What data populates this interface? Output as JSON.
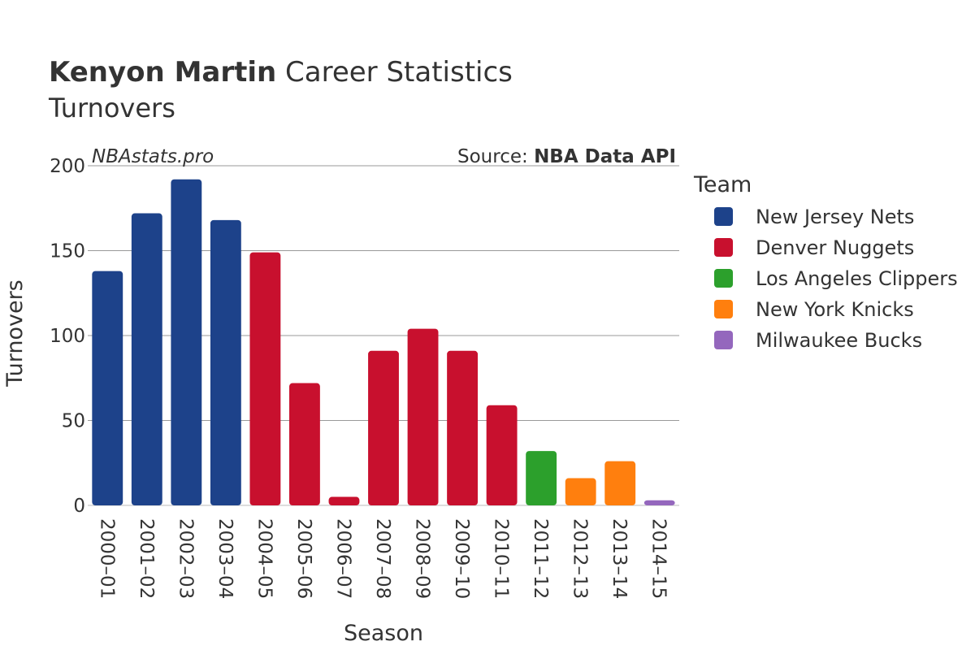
{
  "chart_data": {
    "type": "bar",
    "title_bold": "Kenyon Martin",
    "title_rest": " Career Statistics",
    "subtitle": "Turnovers",
    "watermark": "NBAstats.pro",
    "source_prefix": "Source: ",
    "source_bold": "NBA Data API",
    "xlabel": "Season",
    "ylabel": "Turnovers",
    "ylim": [
      0,
      200
    ],
    "yticks": [
      0,
      50,
      100,
      150,
      200
    ],
    "grid": true,
    "legend_title": "Team",
    "legend_position": "right",
    "teams": [
      {
        "name": "New Jersey Nets",
        "color": "#1d428a"
      },
      {
        "name": "Denver Nuggets",
        "color": "#c8102e"
      },
      {
        "name": "Los Angeles Clippers",
        "color": "#2ca02c"
      },
      {
        "name": "New York Knicks",
        "color": "#ff7f0e"
      },
      {
        "name": "Milwaukee Bucks",
        "color": "#9467bd"
      }
    ],
    "bars": [
      {
        "season": "2000–01",
        "value": 138,
        "team": 0
      },
      {
        "season": "2001–02",
        "value": 172,
        "team": 0
      },
      {
        "season": "2002–03",
        "value": 192,
        "team": 0
      },
      {
        "season": "2003–04",
        "value": 168,
        "team": 0
      },
      {
        "season": "2004–05",
        "value": 149,
        "team": 1
      },
      {
        "season": "2005–06",
        "value": 72,
        "team": 1
      },
      {
        "season": "2006–07",
        "value": 5,
        "team": 1
      },
      {
        "season": "2007–08",
        "value": 91,
        "team": 1
      },
      {
        "season": "2008–09",
        "value": 104,
        "team": 1
      },
      {
        "season": "2009–10",
        "value": 91,
        "team": 1
      },
      {
        "season": "2010–11",
        "value": 59,
        "team": 1
      },
      {
        "season": "2011–12",
        "value": 32,
        "team": 2
      },
      {
        "season": "2012–13",
        "value": 16,
        "team": 3
      },
      {
        "season": "2013–14",
        "value": 26,
        "team": 3
      },
      {
        "season": "2014–15",
        "value": 3,
        "team": 4
      }
    ]
  }
}
